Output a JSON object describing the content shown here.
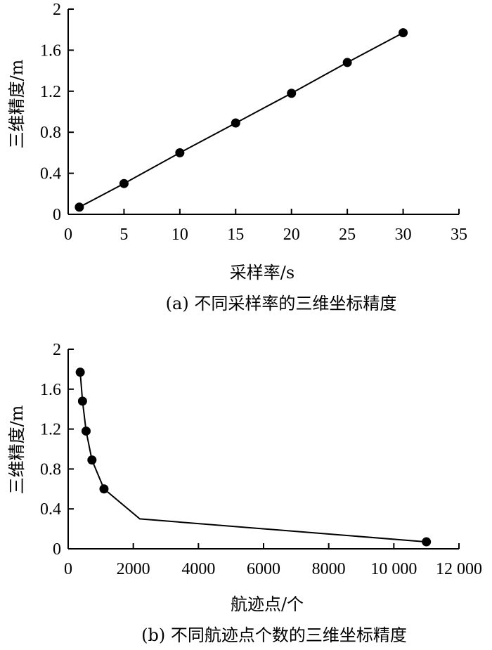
{
  "chart_data": [
    {
      "type": "line",
      "caption": "(a) 不同采样率的三维坐标精度",
      "xlabel": "采样率/s",
      "ylabel": "三维精度/m",
      "xlim": [
        0,
        35
      ],
      "ylim": [
        0,
        2
      ],
      "x_ticks": [
        "0",
        "5",
        "10",
        "15",
        "20",
        "25",
        "30",
        "35"
      ],
      "x_tick_values": [
        0,
        5,
        10,
        15,
        20,
        25,
        30,
        35
      ],
      "y_ticks": [
        "0",
        "0.4",
        "0.8",
        "1.2",
        "1.6",
        "2"
      ],
      "y_tick_values": [
        0,
        0.4,
        0.8,
        1.2,
        1.6,
        2
      ],
      "grid": false,
      "series": [
        {
          "x": [
            1,
            5,
            10,
            15,
            20,
            25,
            30
          ],
          "y": [
            0.07,
            0.3,
            0.6,
            0.89,
            1.18,
            1.48,
            1.77
          ],
          "markers": true,
          "color": "#000000"
        }
      ]
    },
    {
      "type": "line",
      "caption": "(b) 不同航迹点个数的三维坐标精度",
      "xlabel": "航迹点/个",
      "ylabel": "三维精度/m",
      "xlim": [
        0,
        12000
      ],
      "ylim": [
        0,
        2
      ],
      "x_ticks": [
        "0",
        "2000",
        "4000",
        "6000",
        "8000",
        "10 000",
        "12 000"
      ],
      "x_tick_values": [
        0,
        2000,
        4000,
        6000,
        8000,
        10000,
        12000
      ],
      "y_ticks": [
        "0",
        "0.4",
        "0.8",
        "1.2",
        "1.6",
        "2"
      ],
      "y_tick_values": [
        0,
        0.4,
        0.8,
        1.2,
        1.6,
        2
      ],
      "grid": false,
      "series": [
        {
          "x": [
            370,
            440,
            550,
            730,
            1100,
            2200,
            11000
          ],
          "y": [
            1.77,
            1.48,
            1.18,
            0.89,
            0.6,
            0.3,
            0.07
          ],
          "marker_indices": [
            0,
            1,
            2,
            3,
            4,
            6
          ],
          "color": "#000000"
        }
      ]
    }
  ]
}
